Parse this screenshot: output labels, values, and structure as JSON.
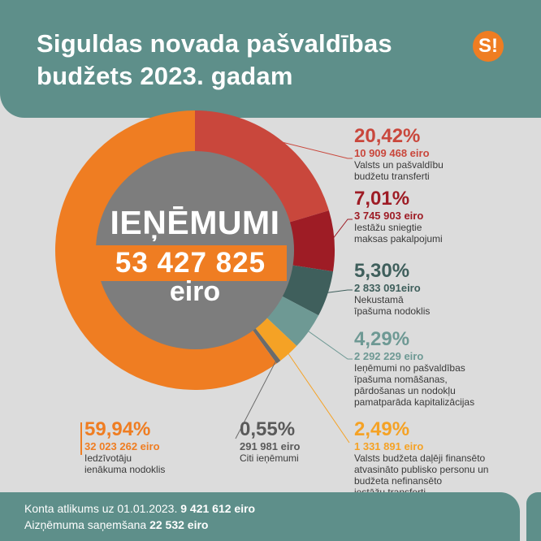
{
  "header": {
    "title_line1": "Siguldas novada pašvaldības",
    "title_line2": "budžets 2023. gadam",
    "logo_text": "S!"
  },
  "center": {
    "label": "IEŅĒMUMI",
    "total": "53 427 825",
    "unit": "eiro"
  },
  "colors": {
    "header_bg": "#5e8f8a",
    "orange": "#ef7d22",
    "red": "#c9473c",
    "darkred": "#9e1c25",
    "darkteal": "#3f5f5c",
    "teal": "#6e9994",
    "lightorange": "#f5a225",
    "gray": "#6b6b6b",
    "center_gray": "#7d7d7d"
  },
  "chart_data": {
    "type": "pie",
    "subtype": "donut",
    "slices": [
      {
        "percent": 20.42,
        "amount": "10 909 468 eiro",
        "pct_label": "20,42%",
        "desc": [
          "Valsts un pašvaldību",
          "budžetu transferti"
        ],
        "color": "#c9473c"
      },
      {
        "percent": 7.01,
        "amount": "3 745 903 eiro",
        "pct_label": "7,01%",
        "desc": [
          "Iestāžu sniegtie",
          "maksas  pakalpojumi"
        ],
        "color": "#9e1c25"
      },
      {
        "percent": 5.3,
        "amount": "2 833 091eiro",
        "pct_label": "5,30%",
        "desc": [
          "Nekustamā",
          "īpašuma nodoklis"
        ],
        "color": "#3f5f5c"
      },
      {
        "percent": 4.29,
        "amount": "2 292 229 eiro",
        "pct_label": "4,29%",
        "desc": [
          "Ieņēmumi no pašvaldības",
          "īpašuma nomāšanas,",
          "pārdošanas un nodokļu",
          "pamatparāda kapitalizācijas"
        ],
        "color": "#6e9994"
      },
      {
        "percent": 2.49,
        "amount": "1 331 891 eiro",
        "pct_label": "2,49%",
        "desc": [
          "Valsts budžeta daļēji finansēto",
          "atvasināto publisko personu un",
          "budžeta nefinansēto",
          "iestāžu transferti"
        ],
        "color": "#f5a225"
      },
      {
        "percent": 0.55,
        "amount": "291 981 eiro",
        "pct_label": "0,55%",
        "desc": [
          "Citi ieņēmumi"
        ],
        "color": "#6b6b6b"
      },
      {
        "percent": 59.94,
        "amount": "32 023 262 eiro",
        "pct_label": "59,94%",
        "desc": [
          "Iedzīvotāju",
          "ienākuma nodoklis"
        ],
        "color": "#ef7d22"
      }
    ]
  },
  "footer": {
    "line1_label": "Konta atlikums uz 01.01.2023.",
    "line1_value": "9 421 612 eiro",
    "line2_label": "Aizņēmuma saņemšana",
    "line2_value": "22 532 eiro"
  }
}
